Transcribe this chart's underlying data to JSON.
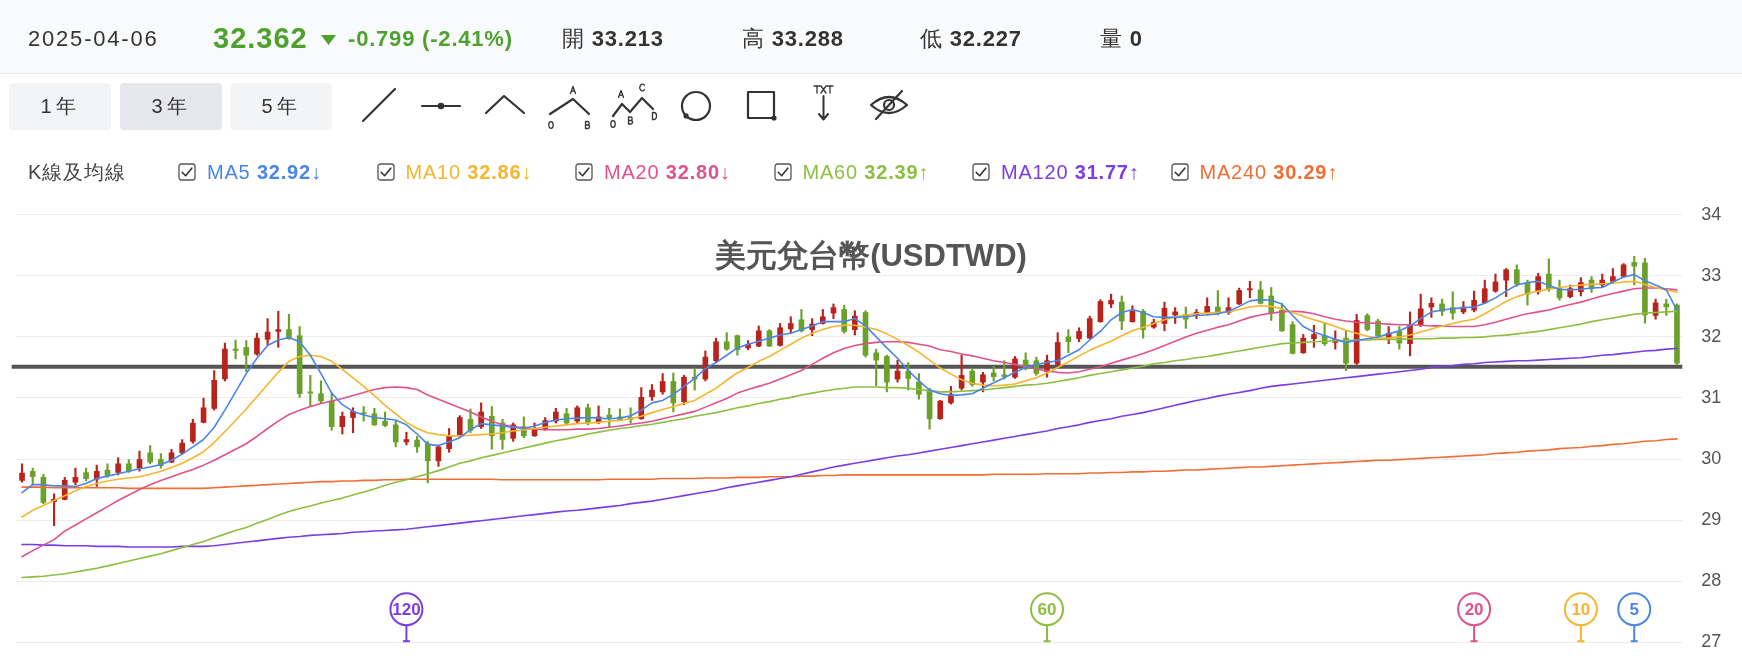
{
  "chart_data": {
    "type": "candlestick",
    "title": "美元兌台幣(USDTWD)",
    "legend_title": "K線及均線",
    "categories": [
      null,
      null,
      null,
      null,
      null,
      null,
      null,
      null,
      null,
      null,
      null,
      null,
      null,
      null,
      null,
      null,
      null,
      null,
      null,
      null,
      null,
      null,
      null,
      null,
      null,
      null,
      null,
      null,
      null,
      null,
      null,
      null,
      null,
      null,
      null,
      null,
      null,
      null,
      null,
      null,
      null,
      null,
      null,
      null,
      null,
      null,
      null,
      null,
      null,
      null,
      null,
      null,
      null,
      null,
      null,
      null,
      null,
      null,
      null,
      null,
      null,
      null,
      null,
      null,
      null,
      null,
      null,
      null,
      null,
      null,
      null,
      null,
      null,
      null,
      null,
      null,
      null,
      null,
      null,
      null,
      null,
      null,
      null,
      null,
      null,
      null,
      null,
      null,
      null,
      null,
      null,
      null,
      null,
      null,
      null,
      null,
      null,
      null,
      null,
      null,
      null,
      null,
      null,
      null,
      null,
      null,
      null,
      null,
      null,
      null,
      null,
      null,
      null,
      null,
      null,
      null,
      null,
      null,
      null,
      null,
      null,
      null,
      null,
      null,
      null,
      null,
      null,
      null,
      null,
      null,
      null,
      null,
      null,
      null,
      null,
      null,
      null,
      null,
      null,
      null,
      null,
      null,
      null,
      null,
      null,
      null,
      null,
      null,
      null,
      null,
      null,
      null,
      null,
      null,
      null,
      null
    ],
    "ohlc": [
      [
        29.65,
        29.92,
        29.62,
        29.77
      ],
      [
        29.8,
        29.85,
        29.58,
        29.71
      ],
      [
        29.7,
        29.75,
        29.27,
        29.29
      ],
      [
        29.3,
        29.43,
        28.91,
        29.34
      ],
      [
        29.34,
        29.7,
        29.33,
        29.65
      ],
      [
        29.62,
        29.85,
        29.58,
        29.7
      ],
      [
        29.78,
        29.85,
        29.64,
        29.68
      ],
      [
        29.67,
        29.9,
        29.55,
        29.8
      ],
      [
        29.82,
        29.92,
        29.7,
        29.73
      ],
      [
        29.78,
        30.02,
        29.74,
        29.92
      ],
      [
        29.92,
        29.99,
        29.78,
        29.8
      ],
      [
        29.85,
        30.13,
        29.8,
        29.99
      ],
      [
        30.1,
        30.22,
        29.92,
        29.95
      ],
      [
        29.99,
        30.09,
        29.85,
        29.89
      ],
      [
        29.95,
        30.16,
        29.94,
        30.1
      ],
      [
        30.1,
        30.32,
        30.08,
        30.26
      ],
      [
        30.29,
        30.65,
        30.26,
        30.59
      ],
      [
        30.6,
        31.0,
        30.59,
        30.84
      ],
      [
        30.83,
        31.45,
        30.8,
        31.29
      ],
      [
        31.31,
        31.9,
        31.28,
        31.8
      ],
      [
        31.8,
        31.95,
        31.64,
        31.78
      ],
      [
        31.83,
        31.94,
        31.43,
        31.7
      ],
      [
        31.72,
        32.06,
        31.7,
        31.98
      ],
      [
        31.96,
        32.3,
        31.87,
        32.08
      ],
      [
        32.09,
        32.42,
        31.83,
        32.12
      ],
      [
        32.12,
        32.37,
        31.96,
        31.97
      ],
      [
        32.02,
        32.17,
        31.01,
        31.07
      ],
      [
        31.1,
        31.37,
        30.86,
        31.08
      ],
      [
        31.07,
        31.28,
        30.92,
        30.95
      ],
      [
        30.95,
        31.08,
        30.47,
        30.53
      ],
      [
        30.53,
        30.77,
        30.41,
        30.7
      ],
      [
        30.68,
        30.84,
        30.43,
        30.78
      ],
      [
        30.76,
        30.86,
        30.62,
        30.74
      ],
      [
        30.74,
        30.83,
        30.55,
        30.56
      ],
      [
        30.62,
        30.77,
        30.53,
        30.55
      ],
      [
        30.56,
        30.62,
        30.2,
        30.28
      ],
      [
        30.28,
        30.44,
        30.23,
        30.32
      ],
      [
        30.31,
        30.37,
        30.11,
        30.2
      ],
      [
        30.25,
        30.29,
        29.61,
        29.97
      ],
      [
        29.97,
        30.23,
        29.88,
        30.2
      ],
      [
        30.17,
        30.5,
        30.11,
        30.37
      ],
      [
        30.38,
        30.71,
        30.35,
        30.68
      ],
      [
        30.65,
        30.82,
        30.43,
        30.47
      ],
      [
        30.53,
        30.92,
        30.5,
        30.77
      ],
      [
        30.7,
        30.86,
        30.16,
        30.38
      ],
      [
        30.59,
        30.65,
        30.16,
        30.32
      ],
      [
        30.34,
        30.59,
        30.29,
        30.56
      ],
      [
        30.53,
        30.69,
        30.35,
        30.38
      ],
      [
        30.38,
        30.59,
        30.37,
        30.5
      ],
      [
        30.5,
        30.68,
        30.47,
        30.63
      ],
      [
        30.62,
        30.83,
        30.59,
        30.77
      ],
      [
        30.74,
        30.83,
        30.56,
        30.59
      ],
      [
        30.62,
        30.87,
        30.59,
        30.84
      ],
      [
        30.84,
        30.9,
        30.56,
        30.59
      ],
      [
        30.61,
        30.87,
        30.58,
        30.69
      ],
      [
        30.72,
        30.83,
        30.53,
        30.68
      ],
      [
        30.69,
        30.82,
        30.63,
        30.65
      ],
      [
        30.68,
        30.84,
        30.59,
        30.65
      ],
      [
        30.66,
        31.17,
        30.65,
        31.01
      ],
      [
        31.02,
        31.22,
        30.96,
        31.13
      ],
      [
        31.1,
        31.4,
        31.06,
        31.27
      ],
      [
        31.27,
        31.41,
        30.77,
        30.92
      ],
      [
        30.94,
        31.37,
        30.89,
        31.34
      ],
      [
        31.34,
        31.49,
        31.13,
        31.31
      ],
      [
        31.31,
        31.77,
        31.28,
        31.67
      ],
      [
        31.61,
        31.98,
        31.58,
        31.92
      ],
      [
        31.92,
        32.07,
        31.78,
        31.8
      ],
      [
        32.02,
        32.03,
        31.7,
        31.79
      ],
      [
        31.82,
        31.94,
        31.79,
        31.88
      ],
      [
        31.85,
        32.18,
        31.84,
        32.1
      ],
      [
        32.1,
        32.12,
        31.84,
        31.85
      ],
      [
        31.86,
        32.22,
        31.85,
        32.15
      ],
      [
        32.13,
        32.33,
        32.06,
        32.22
      ],
      [
        32.28,
        32.45,
        32.08,
        32.1
      ],
      [
        32.12,
        32.3,
        32.02,
        32.21
      ],
      [
        32.22,
        32.45,
        32.21,
        32.33
      ],
      [
        32.39,
        32.54,
        32.3,
        32.48
      ],
      [
        32.45,
        32.52,
        32.06,
        32.09
      ],
      [
        32.12,
        32.43,
        32.03,
        32.34
      ],
      [
        32.4,
        32.43,
        31.67,
        31.7
      ],
      [
        31.74,
        31.8,
        31.2,
        31.62
      ],
      [
        31.68,
        31.7,
        31.1,
        31.26
      ],
      [
        31.31,
        31.62,
        31.26,
        31.44
      ],
      [
        31.44,
        31.58,
        31.13,
        31.32
      ],
      [
        31.26,
        31.4,
        30.98,
        31.06
      ],
      [
        31.13,
        31.16,
        30.49,
        30.66
      ],
      [
        30.66,
        30.96,
        30.65,
        30.95
      ],
      [
        30.92,
        31.19,
        30.9,
        31.06
      ],
      [
        31.16,
        31.7,
        31.13,
        31.37
      ],
      [
        31.44,
        31.49,
        31.19,
        31.22
      ],
      [
        31.26,
        31.42,
        31.1,
        31.38
      ],
      [
        31.41,
        31.52,
        31.28,
        31.35
      ],
      [
        31.38,
        31.61,
        31.31,
        31.35
      ],
      [
        31.34,
        31.68,
        31.32,
        31.64
      ],
      [
        31.62,
        31.74,
        31.46,
        31.49
      ],
      [
        31.61,
        31.67,
        31.37,
        31.4
      ],
      [
        31.43,
        31.7,
        31.34,
        31.61
      ],
      [
        31.55,
        32.07,
        31.54,
        31.91
      ],
      [
        32.0,
        32.12,
        31.74,
        31.92
      ],
      [
        31.97,
        32.15,
        31.92,
        32.09
      ],
      [
        31.98,
        32.34,
        31.97,
        32.3
      ],
      [
        32.25,
        32.61,
        32.24,
        32.58
      ],
      [
        32.54,
        32.7,
        32.48,
        32.6
      ],
      [
        32.57,
        32.67,
        32.12,
        32.26
      ],
      [
        32.25,
        32.51,
        32.24,
        32.42
      ],
      [
        32.42,
        32.45,
        31.98,
        32.12
      ],
      [
        32.16,
        32.29,
        32.14,
        32.24
      ],
      [
        32.22,
        32.57,
        32.1,
        32.47
      ],
      [
        32.36,
        32.48,
        32.22,
        32.41
      ],
      [
        32.37,
        32.49,
        32.14,
        32.29
      ],
      [
        32.35,
        32.45,
        32.3,
        32.4
      ],
      [
        32.4,
        32.64,
        32.37,
        32.5
      ],
      [
        32.49,
        32.76,
        32.36,
        32.38
      ],
      [
        32.4,
        32.64,
        32.37,
        32.48
      ],
      [
        32.54,
        32.8,
        32.53,
        32.76
      ],
      [
        32.77,
        32.91,
        32.64,
        32.79
      ],
      [
        32.77,
        32.91,
        32.54,
        32.55
      ],
      [
        32.67,
        32.81,
        32.27,
        32.39
      ],
      [
        32.44,
        32.55,
        32.09,
        32.1
      ],
      [
        32.2,
        32.25,
        31.72,
        31.73
      ],
      [
        31.74,
        32.04,
        31.73,
        31.98
      ],
      [
        31.97,
        32.19,
        31.83,
        32.04
      ],
      [
        32.02,
        32.23,
        31.86,
        31.89
      ],
      [
        31.91,
        32.1,
        31.8,
        31.96
      ],
      [
        31.98,
        32.1,
        31.45,
        31.57
      ],
      [
        31.57,
        32.37,
        31.55,
        32.27
      ],
      [
        32.35,
        32.38,
        32.1,
        32.12
      ],
      [
        32.26,
        32.29,
        32.0,
        32.02
      ],
      [
        31.97,
        32.17,
        31.89,
        32.06
      ],
      [
        32.09,
        32.17,
        31.8,
        31.9
      ],
      [
        31.89,
        32.41,
        31.69,
        32.2
      ],
      [
        32.2,
        32.7,
        32.17,
        32.46
      ],
      [
        32.49,
        32.64,
        32.32,
        32.55
      ],
      [
        32.54,
        32.62,
        32.35,
        32.42
      ],
      [
        32.48,
        32.74,
        32.29,
        32.39
      ],
      [
        32.41,
        32.58,
        32.38,
        32.49
      ],
      [
        32.44,
        32.75,
        32.41,
        32.6
      ],
      [
        32.56,
        32.93,
        32.55,
        32.79
      ],
      [
        32.75,
        33.03,
        32.73,
        32.9
      ],
      [
        32.93,
        33.12,
        32.66,
        33.1
      ],
      [
        33.1,
        33.18,
        32.83,
        32.87
      ],
      [
        32.89,
        32.93,
        32.52,
        32.7
      ],
      [
        32.74,
        33.04,
        32.7,
        32.99
      ],
      [
        33.03,
        33.28,
        32.75,
        32.79
      ],
      [
        32.79,
        32.93,
        32.6,
        32.64
      ],
      [
        32.66,
        32.85,
        32.64,
        32.79
      ],
      [
        32.74,
        32.97,
        32.67,
        32.89
      ],
      [
        32.93,
        32.99,
        32.73,
        32.79
      ],
      [
        32.85,
        33.03,
        32.81,
        32.93
      ],
      [
        32.91,
        33.12,
        32.89,
        32.99
      ],
      [
        32.99,
        33.2,
        32.97,
        33.18
      ],
      [
        33.22,
        33.32,
        32.85,
        33.16
      ],
      [
        33.213,
        33.288,
        32.227,
        32.362
      ],
      [
        32.35,
        32.62,
        32.29,
        32.56
      ],
      [
        32.54,
        32.62,
        32.35,
        32.49
      ],
      [
        32.52,
        32.54,
        31.55,
        31.57
      ]
    ],
    "colors": [
      "#b8241c",
      "#6aa12b",
      "#6aa12b",
      "#b8241c",
      "#b8241c",
      "#b8241c",
      "#6aa12b",
      "#b8241c",
      "#6aa12b",
      "#b8241c",
      "#6aa12b",
      "#b8241c",
      "#6aa12b",
      "#6aa12b",
      "#b8241c",
      "#b8241c",
      "#b8241c",
      "#b8241c",
      "#b8241c",
      "#b8241c",
      "#6aa12b",
      "#6aa12b",
      "#b8241c",
      "#b8241c",
      "#b8241c",
      "#6aa12b",
      "#6aa12b",
      "#6aa12b",
      "#6aa12b",
      "#6aa12b",
      "#b8241c",
      "#b8241c",
      "#6aa12b",
      "#6aa12b",
      "#6aa12b",
      "#6aa12b",
      "#b8241c",
      "#6aa12b",
      "#6aa12b",
      "#b8241c",
      "#b8241c",
      "#b8241c",
      "#6aa12b",
      "#b8241c",
      "#6aa12b",
      "#6aa12b",
      "#b8241c",
      "#6aa12b",
      "#b8241c",
      "#b8241c",
      "#b8241c",
      "#6aa12b",
      "#b8241c",
      "#6aa12b",
      "#b8241c",
      "#6aa12b",
      "#6aa12b",
      "#6aa12b",
      "#b8241c",
      "#b8241c",
      "#b8241c",
      "#6aa12b",
      "#b8241c",
      "#6aa12b",
      "#b8241c",
      "#b8241c",
      "#6aa12b",
      "#6aa12b",
      "#b8241c",
      "#b8241c",
      "#6aa12b",
      "#b8241c",
      "#b8241c",
      "#6aa12b",
      "#b8241c",
      "#b8241c",
      "#b8241c",
      "#6aa12b",
      "#b8241c",
      "#6aa12b",
      "#6aa12b",
      "#6aa12b",
      "#b8241c",
      "#6aa12b",
      "#6aa12b",
      "#6aa12b",
      "#b8241c",
      "#b8241c",
      "#b8241c",
      "#6aa12b",
      "#b8241c",
      "#6aa12b",
      "#6aa12b",
      "#b8241c",
      "#6aa12b",
      "#6aa12b",
      "#b8241c",
      "#b8241c",
      "#6aa12b",
      "#b8241c",
      "#b8241c",
      "#b8241c",
      "#b8241c",
      "#6aa12b",
      "#b8241c",
      "#6aa12b",
      "#b8241c",
      "#b8241c",
      "#b8241c",
      "#6aa12b",
      "#b8241c",
      "#b8241c",
      "#6aa12b",
      "#b8241c",
      "#b8241c",
      "#b8241c",
      "#6aa12b",
      "#6aa12b",
      "#6aa12b",
      "#6aa12b",
      "#b8241c",
      "#b8241c",
      "#6aa12b",
      "#b8241c",
      "#6aa12b",
      "#b8241c",
      "#6aa12b",
      "#6aa12b",
      "#b8241c",
      "#6aa12b",
      "#b8241c",
      "#b8241c",
      "#b8241c",
      "#6aa12b",
      "#6aa12b",
      "#b8241c",
      "#b8241c",
      "#b8241c",
      "#b8241c",
      "#b8241c",
      "#6aa12b",
      "#6aa12b",
      "#b8241c",
      "#6aa12b",
      "#6aa12b",
      "#b8241c",
      "#b8241c",
      "#6aa12b",
      "#b8241c",
      "#b8241c",
      "#b8241c",
      "#6aa12b",
      "#6aa12b",
      "#b8241c",
      "#6aa12b",
      "#6aa12b"
    ],
    "series": [
      {
        "name": "MA5 32.92↓",
        "type": "line",
        "color": "#4a86e8",
        "values": [
          29.45,
          29.58,
          29.58,
          29.56,
          29.56,
          29.55,
          29.6,
          29.68,
          29.72,
          29.76,
          29.8,
          29.84,
          29.87,
          29.91,
          29.98,
          30.08,
          30.2,
          30.32,
          30.52,
          30.8,
          31.1,
          31.4,
          31.65,
          31.86,
          31.95,
          31.99,
          31.92,
          31.7,
          31.4,
          31.08,
          30.89,
          30.78,
          30.72,
          30.68,
          30.66,
          30.64,
          30.56,
          30.41,
          30.24,
          30.22,
          30.28,
          30.35,
          30.48,
          30.58,
          30.56,
          30.54,
          30.52,
          30.5,
          30.54,
          30.6,
          30.64,
          30.66,
          30.67,
          30.68,
          30.67,
          30.66,
          30.67,
          30.71,
          30.8,
          30.92,
          30.96,
          31.06,
          31.19,
          31.32,
          31.48,
          31.58,
          31.7,
          31.82,
          31.88,
          31.93,
          31.98,
          32.03,
          32.06,
          32.12,
          32.18,
          32.25,
          32.25,
          32.25,
          32.3,
          32.18,
          32.0,
          31.82,
          31.65,
          31.45,
          31.28,
          31.13,
          31.07,
          31.04,
          31.05,
          31.07,
          31.16,
          31.25,
          31.33,
          31.42,
          31.5,
          31.55,
          31.58,
          31.61,
          31.7,
          31.79,
          31.95,
          32.09,
          32.28,
          32.4,
          32.45,
          32.4,
          32.33,
          32.32,
          32.32,
          32.33,
          32.35,
          32.36,
          32.38,
          32.42,
          32.5,
          32.59,
          32.61,
          32.6,
          32.54,
          32.35,
          32.17,
          32.08,
          32.02,
          31.96,
          31.91,
          31.94,
          31.97,
          32.0,
          32.05,
          32.1,
          32.18,
          32.3,
          32.41,
          32.44,
          32.46,
          32.48,
          32.49,
          32.55,
          32.64,
          32.75,
          32.85,
          32.89,
          32.91,
          32.84,
          32.78,
          32.77,
          32.78,
          32.8,
          32.81,
          32.9,
          32.98,
          33.02,
          32.92,
          32.85,
          32.77,
          32.44
        ]
      },
      {
        "name": "MA10 32.86↓",
        "type": "line",
        "color": "#f5b52e",
        "values": [
          29.05,
          29.16,
          29.24,
          29.32,
          29.4,
          29.48,
          29.55,
          29.6,
          29.64,
          29.67,
          29.69,
          29.71,
          29.75,
          29.8,
          29.86,
          29.93,
          30.02,
          30.12,
          30.27,
          30.45,
          30.63,
          30.82,
          31.02,
          31.22,
          31.42,
          31.6,
          31.68,
          31.7,
          31.68,
          31.6,
          31.47,
          31.33,
          31.19,
          31.04,
          30.88,
          30.74,
          30.6,
          30.5,
          30.43,
          30.4,
          30.38,
          30.38,
          30.39,
          30.4,
          30.41,
          30.43,
          30.46,
          30.48,
          30.5,
          30.52,
          30.54,
          30.56,
          30.58,
          30.59,
          30.6,
          30.62,
          30.63,
          30.66,
          30.7,
          30.76,
          30.81,
          30.86,
          30.91,
          30.96,
          31.06,
          31.16,
          31.29,
          31.41,
          31.5,
          31.6,
          31.68,
          31.78,
          31.88,
          31.98,
          32.06,
          32.12,
          32.17,
          32.19,
          32.19,
          32.16,
          32.12,
          32.05,
          31.96,
          31.86,
          31.75,
          31.62,
          31.49,
          31.39,
          31.3,
          31.24,
          31.21,
          31.2,
          31.21,
          31.23,
          31.28,
          31.33,
          31.41,
          31.5,
          31.59,
          31.69,
          31.78,
          31.86,
          31.93,
          32.02,
          32.1,
          32.16,
          32.22,
          32.28,
          32.33,
          32.36,
          32.38,
          32.39,
          32.4,
          32.41,
          32.45,
          32.49,
          32.51,
          32.5,
          32.46,
          32.4,
          32.34,
          32.28,
          32.23,
          32.17,
          32.11,
          32.06,
          32.01,
          31.98,
          31.98,
          32.0,
          32.03,
          32.08,
          32.13,
          32.18,
          32.22,
          32.26,
          32.29,
          32.38,
          32.48,
          32.58,
          32.66,
          32.71,
          32.75,
          32.78,
          32.81,
          32.83,
          32.85,
          32.86,
          32.87,
          32.88,
          32.9,
          32.91,
          32.86,
          32.81,
          32.77,
          32.73
        ]
      },
      {
        "name": "MA20 32.80↓",
        "type": "line",
        "color": "#e0528c",
        "values": [
          28.4,
          28.5,
          28.59,
          28.68,
          28.82,
          28.92,
          29.02,
          29.12,
          29.22,
          29.32,
          29.41,
          29.5,
          29.58,
          29.65,
          29.71,
          29.77,
          29.83,
          29.9,
          29.98,
          30.07,
          30.16,
          30.25,
          30.37,
          30.5,
          30.62,
          30.73,
          30.8,
          30.86,
          30.91,
          30.95,
          30.99,
          31.04,
          31.09,
          31.14,
          31.17,
          31.18,
          31.17,
          31.14,
          31.05,
          30.98,
          30.91,
          30.84,
          30.77,
          30.69,
          30.62,
          30.56,
          30.53,
          30.51,
          30.49,
          30.48,
          30.48,
          30.48,
          30.49,
          30.49,
          30.5,
          30.52,
          30.54,
          30.57,
          30.59,
          30.62,
          30.66,
          30.7,
          30.74,
          30.78,
          30.85,
          30.92,
          30.99,
          31.08,
          31.14,
          31.19,
          31.24,
          31.31,
          31.38,
          31.45,
          31.55,
          31.65,
          31.74,
          31.81,
          31.86,
          31.89,
          31.91,
          31.92,
          31.92,
          31.91,
          31.88,
          31.85,
          31.79,
          31.76,
          31.72,
          31.69,
          31.65,
          31.61,
          31.58,
          31.55,
          31.51,
          31.48,
          31.44,
          31.42,
          31.41,
          31.43,
          31.47,
          31.51,
          31.57,
          31.62,
          31.67,
          31.73,
          31.79,
          31.86,
          31.93,
          32.0,
          32.06,
          32.11,
          32.16,
          32.2,
          32.26,
          32.32,
          32.36,
          32.39,
          32.41,
          32.42,
          32.41,
          32.38,
          32.33,
          32.29,
          32.26,
          32.24,
          32.23,
          32.22,
          32.21,
          32.2,
          32.2,
          32.19,
          32.18,
          32.18,
          32.17,
          32.17,
          32.17,
          32.2,
          32.24,
          32.29,
          32.34,
          32.38,
          32.41,
          32.44,
          32.49,
          32.53,
          32.57,
          32.62,
          32.67,
          32.71,
          32.75,
          32.79,
          32.8,
          32.8,
          32.79,
          32.77
        ]
      },
      {
        "name": "MA60 32.39↑",
        "type": "line",
        "color": "#8cbf3f",
        "values": [
          28.06,
          28.07,
          28.08,
          28.1,
          28.12,
          28.15,
          28.18,
          28.21,
          28.25,
          28.29,
          28.33,
          28.37,
          28.41,
          28.45,
          28.5,
          28.55,
          28.6,
          28.65,
          28.71,
          28.77,
          28.83,
          28.88,
          28.95,
          29.01,
          29.08,
          29.14,
          29.19,
          29.23,
          29.28,
          29.32,
          29.36,
          29.41,
          29.46,
          29.51,
          29.57,
          29.62,
          29.66,
          29.71,
          29.76,
          29.81,
          29.87,
          29.93,
          29.97,
          30.02,
          30.06,
          30.1,
          30.14,
          30.18,
          30.22,
          30.26,
          30.3,
          30.33,
          30.37,
          30.41,
          30.44,
          30.47,
          30.5,
          30.52,
          30.55,
          30.57,
          30.6,
          30.63,
          30.66,
          30.7,
          30.73,
          30.76,
          30.8,
          30.84,
          30.87,
          30.91,
          30.94,
          30.98,
          31.01,
          31.05,
          31.08,
          31.11,
          31.14,
          31.16,
          31.18,
          31.18,
          31.18,
          31.17,
          31.17,
          31.16,
          31.14,
          31.12,
          31.1,
          31.1,
          31.11,
          31.12,
          31.13,
          31.15,
          31.17,
          31.19,
          31.21,
          31.22,
          31.24,
          31.27,
          31.3,
          31.33,
          31.37,
          31.4,
          31.43,
          31.46,
          31.49,
          31.52,
          31.56,
          31.58,
          31.61,
          31.63,
          31.66,
          31.68,
          31.71,
          31.74,
          31.77,
          31.8,
          31.83,
          31.86,
          31.89,
          31.9,
          31.91,
          31.92,
          31.93,
          31.94,
          31.94,
          31.95,
          31.95,
          31.96,
          31.96,
          31.96,
          31.97,
          31.97,
          31.97,
          31.98,
          31.98,
          31.99,
          31.99,
          32.0,
          32.02,
          32.03,
          32.05,
          32.07,
          32.09,
          32.12,
          32.15,
          32.18,
          32.21,
          32.25,
          32.28,
          32.31,
          32.34,
          32.37,
          32.39,
          32.4,
          32.41,
          32.42
        ]
      },
      {
        "name": "MA120 31.77↑",
        "type": "line",
        "color": "#7a3de6",
        "values": [
          28.6,
          28.6,
          28.59,
          28.59,
          28.58,
          28.58,
          28.58,
          28.57,
          28.57,
          28.57,
          28.56,
          28.56,
          28.56,
          28.56,
          28.56,
          28.57,
          28.57,
          28.57,
          28.58,
          28.6,
          28.62,
          28.64,
          28.66,
          28.68,
          28.7,
          28.72,
          28.73,
          28.75,
          28.76,
          28.77,
          28.78,
          28.8,
          28.81,
          28.82,
          28.83,
          28.84,
          28.85,
          28.87,
          28.89,
          28.91,
          28.93,
          28.95,
          28.97,
          28.99,
          29.01,
          29.03,
          29.05,
          29.07,
          29.09,
          29.11,
          29.13,
          29.15,
          29.16,
          29.18,
          29.2,
          29.22,
          29.24,
          29.27,
          29.29,
          29.31,
          29.34,
          29.37,
          29.4,
          29.43,
          29.46,
          29.49,
          29.53,
          29.56,
          29.59,
          29.62,
          29.65,
          29.68,
          29.71,
          29.75,
          29.79,
          29.83,
          29.87,
          29.9,
          29.93,
          29.96,
          29.99,
          30.02,
          30.05,
          30.07,
          30.1,
          30.13,
          30.16,
          30.19,
          30.22,
          30.25,
          30.28,
          30.31,
          30.34,
          30.37,
          30.4,
          30.43,
          30.46,
          30.5,
          30.53,
          30.56,
          30.6,
          30.63,
          30.66,
          30.7,
          30.73,
          30.76,
          30.8,
          30.84,
          30.88,
          30.92,
          30.96,
          30.99,
          31.03,
          31.06,
          31.09,
          31.12,
          31.16,
          31.19,
          31.21,
          31.23,
          31.25,
          31.27,
          31.29,
          31.31,
          31.33,
          31.35,
          31.37,
          31.39,
          31.41,
          31.43,
          31.45,
          31.47,
          31.5,
          31.52,
          31.53,
          31.55,
          31.56,
          31.58,
          31.59,
          31.6,
          31.61,
          31.61,
          31.62,
          31.63,
          31.64,
          31.65,
          31.66,
          31.68,
          31.7,
          31.71,
          31.73,
          31.75,
          31.77,
          31.78,
          31.8,
          31.81
        ]
      },
      {
        "name": "MA240 30.29↑",
        "type": "line",
        "color": "#f26c35",
        "values": [
          29.54,
          29.54,
          29.54,
          29.53,
          29.53,
          29.53,
          29.53,
          29.53,
          29.53,
          29.53,
          29.52,
          29.52,
          29.52,
          29.52,
          29.52,
          29.52,
          29.52,
          29.52,
          29.53,
          29.54,
          29.55,
          29.56,
          29.57,
          29.58,
          29.59,
          29.6,
          29.61,
          29.62,
          29.63,
          29.63,
          29.64,
          29.64,
          29.65,
          29.65,
          29.66,
          29.66,
          29.67,
          29.67,
          29.67,
          29.67,
          29.67,
          29.67,
          29.67,
          29.67,
          29.67,
          29.66,
          29.66,
          29.66,
          29.66,
          29.66,
          29.66,
          29.66,
          29.66,
          29.66,
          29.66,
          29.67,
          29.67,
          29.67,
          29.67,
          29.67,
          29.68,
          29.68,
          29.68,
          29.68,
          29.69,
          29.69,
          29.69,
          29.7,
          29.7,
          29.7,
          29.71,
          29.71,
          29.71,
          29.72,
          29.72,
          29.73,
          29.73,
          29.74,
          29.74,
          29.74,
          29.74,
          29.74,
          29.74,
          29.74,
          29.74,
          29.74,
          29.74,
          29.74,
          29.74,
          29.74,
          29.74,
          29.75,
          29.75,
          29.75,
          29.75,
          29.75,
          29.76,
          29.76,
          29.76,
          29.76,
          29.77,
          29.77,
          29.78,
          29.78,
          29.79,
          29.79,
          29.8,
          29.8,
          29.81,
          29.82,
          29.82,
          29.83,
          29.84,
          29.85,
          29.86,
          29.87,
          29.87,
          29.88,
          29.89,
          29.9,
          29.91,
          29.92,
          29.93,
          29.94,
          29.95,
          29.96,
          29.97,
          29.98,
          29.98,
          29.99,
          30.0,
          30.01,
          30.02,
          30.03,
          30.04,
          30.05,
          30.06,
          30.07,
          30.09,
          30.1,
          30.11,
          30.13,
          30.14,
          30.15,
          30.17,
          30.18,
          30.19,
          30.21,
          30.22,
          30.24,
          30.25,
          30.27,
          30.29,
          30.3,
          30.32,
          30.33
        ]
      }
    ],
    "ylim": [
      27,
      34
    ],
    "yticks": [
      27,
      28,
      29,
      30,
      31,
      32,
      33,
      34
    ],
    "grid": "y",
    "tick_labels": "y",
    "legend": "top left",
    "ref_lines": [
      {
        "axis": "y",
        "value": 31.51,
        "color": "#555555"
      }
    ],
    "annotations": [
      "2025-04-06",
      "32.362",
      "-0.799 (-2.41%)",
      "開 33.213",
      "高 33.288",
      "低 32.227",
      "量 0",
      "1年",
      "3年",
      "5年",
      "5",
      "10",
      "20",
      "60",
      "120"
    ]
  }
}
